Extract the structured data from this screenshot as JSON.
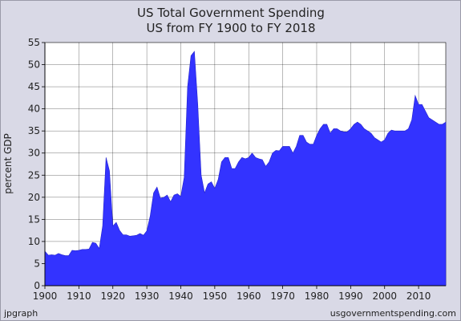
{
  "chart_data": {
    "type": "area",
    "title": "US Total Government Spending",
    "subtitle": "US from FY 1900 to FY 2018",
    "xlabel": "",
    "ylabel": "percent GDP",
    "xlim": [
      1900,
      2018
    ],
    "ylim": [
      0,
      55
    ],
    "x_ticks": [
      1900,
      1910,
      1920,
      1930,
      1940,
      1950,
      1960,
      1970,
      1980,
      1990,
      2000,
      2010
    ],
    "y_ticks": [
      0,
      5,
      10,
      15,
      20,
      25,
      30,
      35,
      40,
      45,
      50,
      55
    ],
    "grid": true,
    "fill_color": "#3333ff",
    "plot_background": "#ffffff",
    "series": [
      {
        "x": [
          1900,
          1901,
          1902,
          1903,
          1904,
          1905,
          1906,
          1907,
          1908,
          1909,
          1910,
          1911,
          1912,
          1913,
          1914,
          1915,
          1916,
          1917,
          1918,
          1919,
          1920,
          1921,
          1922,
          1923,
          1924,
          1925,
          1926,
          1927,
          1928,
          1929,
          1930,
          1931,
          1932,
          1933,
          1934,
          1935,
          1936,
          1937,
          1938,
          1939,
          1940,
          1941,
          1942,
          1943,
          1944,
          1945,
          1946,
          1947,
          1948,
          1949,
          1950,
          1951,
          1952,
          1953,
          1954,
          1955,
          1956,
          1957,
          1958,
          1959,
          1960,
          1961,
          1962,
          1963,
          1964,
          1965,
          1966,
          1967,
          1968,
          1969,
          1970,
          1971,
          1972,
          1973,
          1974,
          1975,
          1976,
          1977,
          1978,
          1979,
          1980,
          1981,
          1982,
          1983,
          1984,
          1985,
          1986,
          1987,
          1988,
          1989,
          1990,
          1991,
          1992,
          1993,
          1994,
          1995,
          1996,
          1997,
          1998,
          1999,
          2000,
          2001,
          2002,
          2003,
          2004,
          2005,
          2006,
          2007,
          2008,
          2009,
          2010,
          2011,
          2012,
          2013,
          2014,
          2015,
          2016,
          2017,
          2018
        ],
        "values": [
          7.8,
          6.9,
          7.0,
          6.9,
          7.3,
          7.0,
          6.8,
          6.8,
          8.0,
          7.9,
          8.0,
          8.2,
          8.2,
          8.3,
          9.8,
          9.6,
          8.4,
          13.5,
          29.0,
          26.0,
          13.5,
          14.3,
          12.5,
          11.5,
          11.5,
          11.2,
          11.3,
          11.4,
          11.8,
          11.4,
          12.4,
          15.8,
          21.0,
          22.3,
          19.8,
          20.0,
          20.5,
          19.0,
          20.5,
          20.8,
          20.2,
          24.5,
          45.0,
          52.0,
          53.0,
          41.0,
          25.0,
          21.0,
          23.0,
          23.5,
          22.0,
          24.0,
          28.0,
          29.0,
          29.0,
          26.5,
          26.5,
          28.0,
          29.0,
          28.7,
          29.0,
          30.0,
          29.0,
          28.7,
          28.5,
          27.0,
          28.0,
          30.0,
          30.6,
          30.5,
          31.5,
          31.5,
          31.5,
          30.0,
          31.5,
          34.0,
          34.0,
          32.5,
          32.0,
          32.0,
          34.0,
          35.5,
          36.5,
          36.5,
          34.5,
          35.5,
          35.5,
          35.0,
          34.8,
          34.8,
          35.5,
          36.5,
          37.0,
          36.5,
          35.5,
          35.0,
          34.5,
          33.5,
          33.0,
          32.5,
          33.0,
          34.5,
          35.2,
          35.0,
          35.0,
          35.0,
          35.0,
          35.5,
          37.5,
          43.0,
          41.0,
          41.0,
          39.5,
          38.0,
          37.5,
          37.0,
          36.5,
          36.5,
          37.0
        ]
      }
    ]
  },
  "footer": {
    "left": "jpgraph",
    "right": "usgovernmentspending.com"
  }
}
